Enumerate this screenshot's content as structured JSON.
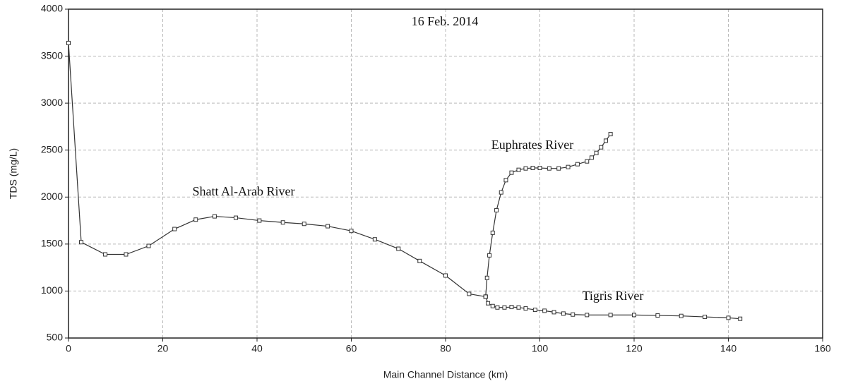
{
  "chart_data": {
    "type": "line",
    "title": "16 Feb. 2014",
    "x_label": "Main Channel Distance (km)",
    "y_label": "TDS (mg/L)",
    "xlim": [
      0,
      160
    ],
    "xticks": [
      0,
      20,
      40,
      60,
      80,
      100,
      120,
      140,
      160
    ],
    "ylim": [
      500,
      4000
    ],
    "yticks": [
      500,
      1000,
      1500,
      2000,
      2500,
      3000,
      3500,
      4000
    ],
    "grid": true,
    "marker": "square",
    "series": [
      {
        "name": "Shatt Al-Arab River",
        "color": "#333333",
        "x": [
          0,
          2.7,
          7.8,
          12.2,
          17,
          22.5,
          27,
          31,
          35.5,
          40.5,
          45.5,
          50,
          55,
          60,
          65,
          70,
          74.5,
          80,
          85,
          88.5
        ],
        "values": [
          3640,
          1520,
          1390,
          1390,
          1480,
          1660,
          1760,
          1795,
          1780,
          1750,
          1730,
          1715,
          1690,
          1640,
          1550,
          1450,
          1320,
          1165,
          970,
          940
        ]
      },
      {
        "name": "Euphrates River",
        "color": "#333333",
        "x": [
          88.5,
          88.8,
          89.3,
          90,
          90.8,
          91.8,
          92.8,
          94,
          95.5,
          97,
          98.5,
          100,
          102,
          104,
          106,
          108,
          110,
          111,
          112,
          113,
          114,
          115
        ],
        "values": [
          940,
          1140,
          1380,
          1620,
          1860,
          2050,
          2180,
          2260,
          2290,
          2305,
          2310,
          2310,
          2305,
          2305,
          2320,
          2350,
          2380,
          2420,
          2470,
          2530,
          2600,
          2670
        ]
      },
      {
        "name": "Tigris River",
        "color": "#333333",
        "x": [
          88.5,
          89,
          90,
          91,
          92.5,
          94,
          95.5,
          97,
          99,
          101,
          103,
          105,
          107,
          110,
          115,
          120,
          125,
          130,
          135,
          140,
          142.5
        ],
        "values": [
          940,
          870,
          840,
          825,
          825,
          830,
          825,
          815,
          800,
          790,
          775,
          760,
          750,
          745,
          745,
          745,
          740,
          735,
          725,
          715,
          705
        ]
      }
    ]
  }
}
